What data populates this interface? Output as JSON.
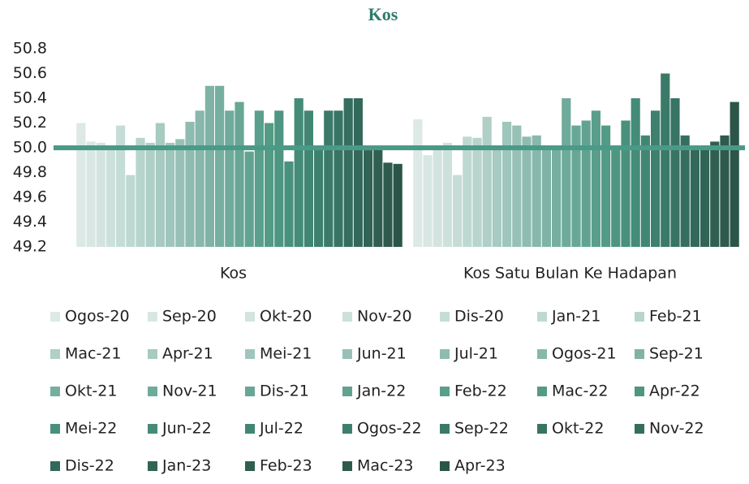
{
  "chart_data": {
    "type": "bar",
    "title": "Kos",
    "categories": [
      "Kos",
      "Kos Satu Bulan Ke Hadapan"
    ],
    "ylim": [
      49.2,
      50.8
    ],
    "yticks": [
      {
        "value": 49.2,
        "label": "49.2"
      },
      {
        "value": 49.4,
        "label": "49.4"
      },
      {
        "value": 49.6,
        "label": "49.6"
      },
      {
        "value": 49.8,
        "label": "49.8"
      },
      {
        "value": 50,
        "label": "50.0"
      },
      {
        "value": 50.2,
        "label": "50.2"
      },
      {
        "value": 50.4,
        "label": "50.4"
      },
      {
        "value": 50.6,
        "label": "50.6"
      },
      {
        "value": 50.8,
        "label": "50.8"
      }
    ],
    "hline": 50,
    "hline_color": "#4a9a88",
    "series": [
      {
        "name": "Ogos-20",
        "color": "#dce9e6",
        "values": [
          50.2,
          50.23
        ]
      },
      {
        "name": "Sep-20",
        "color": "#d8e7e3",
        "values": [
          50.05,
          49.94
        ]
      },
      {
        "name": "Okt-20",
        "color": "#d3e4e0",
        "values": [
          50.04,
          50.0
        ]
      },
      {
        "name": "Nov-20",
        "color": "#cde1dc",
        "values": [
          50.0,
          50.04
        ]
      },
      {
        "name": "Dis-20",
        "color": "#c6ddd7",
        "values": [
          50.18,
          49.78
        ]
      },
      {
        "name": "Jan-21",
        "color": "#bfd9d2",
        "values": [
          49.78,
          50.09
        ]
      },
      {
        "name": "Feb-21",
        "color": "#b7d4cd",
        "values": [
          50.08,
          50.08
        ]
      },
      {
        "name": "Mac-21",
        "color": "#afcfc7",
        "values": [
          50.04,
          50.25
        ]
      },
      {
        "name": "Apr-21",
        "color": "#a7cac1",
        "values": [
          50.2,
          50.0
        ]
      },
      {
        "name": "Mei-21",
        "color": "#9fc6bc",
        "values": [
          50.04,
          50.21
        ]
      },
      {
        "name": "Jun-21",
        "color": "#97c1b6",
        "values": [
          50.07,
          50.18
        ]
      },
      {
        "name": "Jul-21",
        "color": "#8fbcb0",
        "values": [
          50.21,
          50.09
        ]
      },
      {
        "name": "Ogos-21",
        "color": "#87b8ab",
        "values": [
          50.3,
          50.1
        ]
      },
      {
        "name": "Sep-21",
        "color": "#7fb3a5",
        "values": [
          50.5,
          50.0
        ]
      },
      {
        "name": "Okt-21",
        "color": "#77af9f",
        "values": [
          50.5,
          50.0
        ]
      },
      {
        "name": "Nov-21",
        "color": "#6fab9a",
        "values": [
          50.3,
          50.4
        ]
      },
      {
        "name": "Dis-21",
        "color": "#68a795",
        "values": [
          50.37,
          50.18
        ]
      },
      {
        "name": "Jan-22",
        "color": "#61a390",
        "values": [
          49.97,
          50.22
        ]
      },
      {
        "name": "Feb-22",
        "color": "#5a9f8b",
        "values": [
          50.3,
          50.3
        ]
      },
      {
        "name": "Mac-22",
        "color": "#549b86",
        "values": [
          50.2,
          50.18
        ]
      },
      {
        "name": "Apr-22",
        "color": "#4e9682",
        "values": [
          50.3,
          50.0
        ]
      },
      {
        "name": "Mei-22",
        "color": "#49917d",
        "values": [
          49.89,
          50.22
        ]
      },
      {
        "name": "Jun-22",
        "color": "#458c78",
        "values": [
          50.4,
          50.4
        ]
      },
      {
        "name": "Jul-22",
        "color": "#418673",
        "values": [
          50.3,
          50.1
        ]
      },
      {
        "name": "Ogos-22",
        "color": "#3e806e",
        "values": [
          50.0,
          50.3
        ]
      },
      {
        "name": "Sep-22",
        "color": "#3b7a69",
        "values": [
          50.3,
          50.6
        ]
      },
      {
        "name": "Okt-22",
        "color": "#387464",
        "values": [
          50.3,
          50.4
        ]
      },
      {
        "name": "Nov-22",
        "color": "#356e5f",
        "values": [
          50.4,
          50.1
        ]
      },
      {
        "name": "Dis-22",
        "color": "#33695a",
        "values": [
          50.4,
          50.0
        ]
      },
      {
        "name": "Jan-23",
        "color": "#316455",
        "values": [
          49.98,
          50.0
        ]
      },
      {
        "name": "Feb-23",
        "color": "#2f5f51",
        "values": [
          50.0,
          50.05
        ]
      },
      {
        "name": "Mac-23",
        "color": "#2d5a4d",
        "values": [
          49.88,
          50.1
        ]
      },
      {
        "name": "Apr-23",
        "color": "#2b5549",
        "values": [
          49.87,
          50.37
        ]
      }
    ]
  }
}
